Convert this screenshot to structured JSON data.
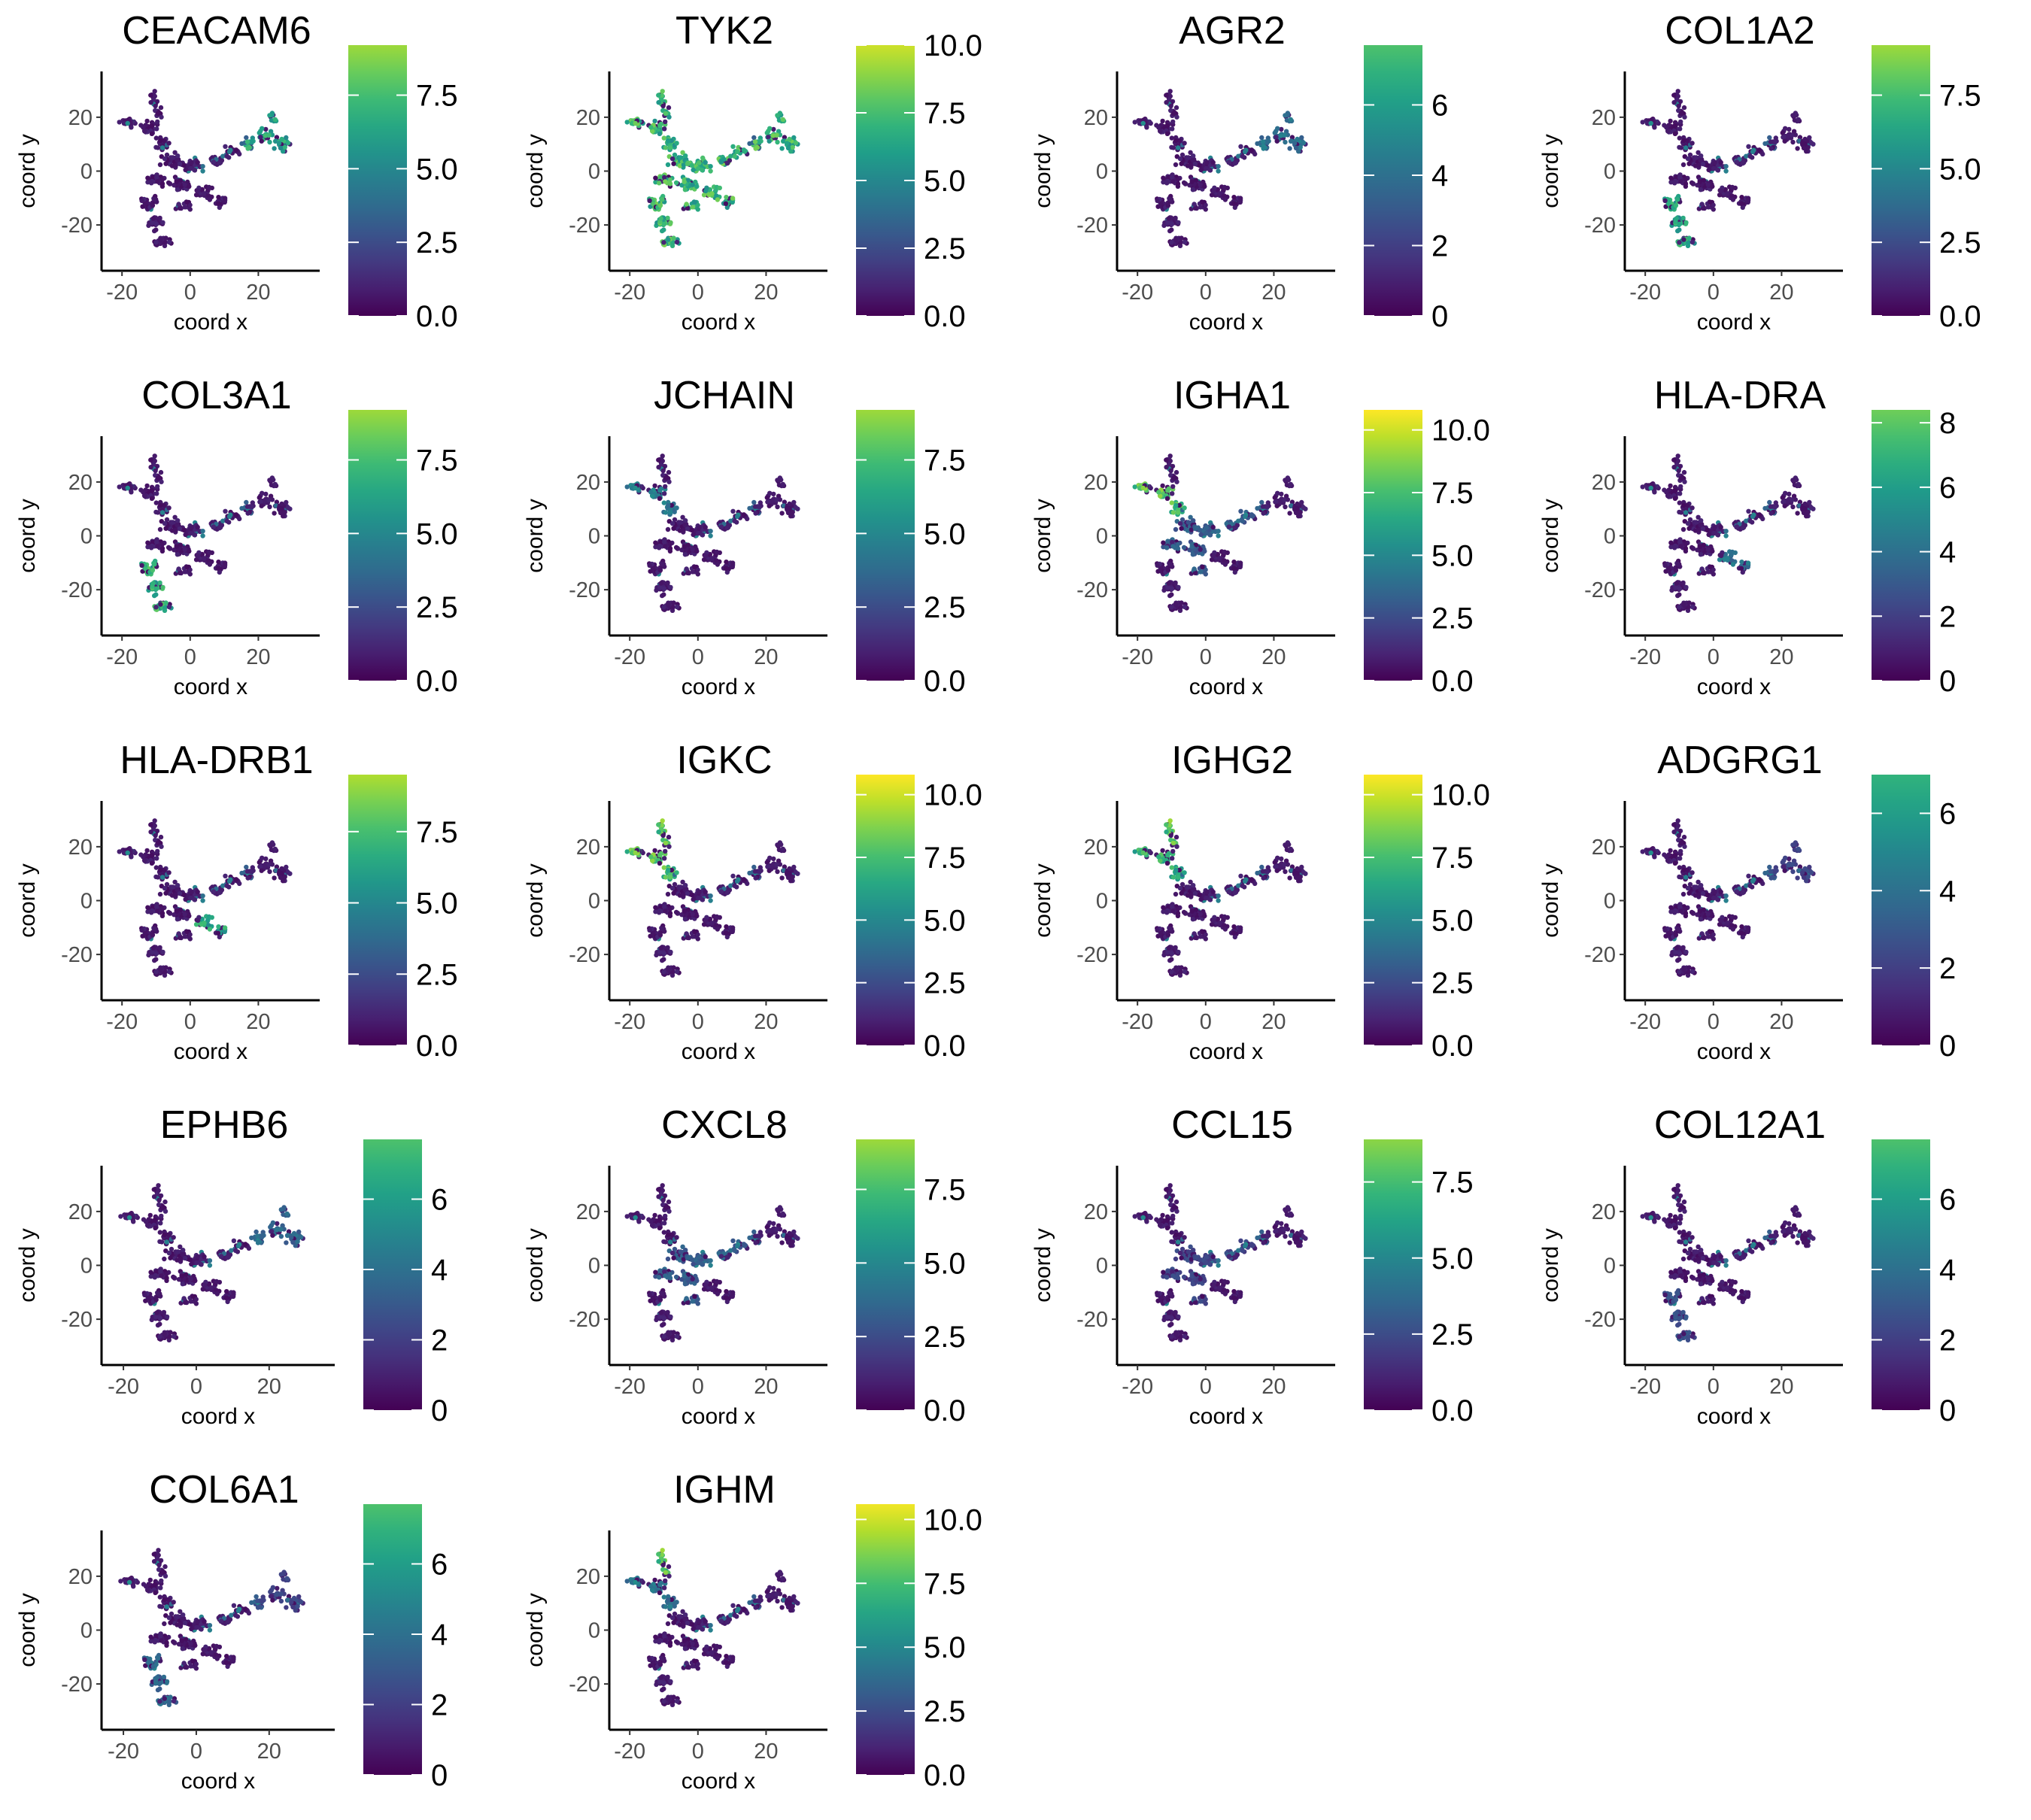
{
  "axis_label_x": "coord x",
  "axis_label_y": "coord y",
  "chart_data": [
    {
      "type": "scatter",
      "title": "CEACAM6",
      "xlabel": "coord x",
      "ylabel": "coord y",
      "x_ticks": [
        "-20",
        "0",
        "20"
      ],
      "y_ticks": [
        "20",
        "0",
        "-20"
      ],
      "colorbar": {
        "min": 0,
        "max": 9.2,
        "ticks": [
          "0.0",
          "2.5",
          "5.0",
          "7.5"
        ],
        "tick_values": [
          0,
          2.5,
          5,
          7.5
        ]
      },
      "high_regions": [
        {
          "region": "right-arm",
          "level": 0.7
        }
      ]
    },
    {
      "type": "scatter",
      "title": "TYK2",
      "xlabel": "coord x",
      "ylabel": "coord y",
      "x_ticks": [
        "-20",
        "0",
        "20"
      ],
      "y_ticks": [
        "20",
        "0",
        "-20"
      ],
      "colorbar": {
        "min": 0,
        "max": 10,
        "ticks": [
          "0.0",
          "2.5",
          "5.0",
          "7.5",
          "10.0"
        ],
        "tick_values": [
          0,
          2.5,
          5,
          7.5,
          10
        ]
      },
      "high_regions": [
        {
          "region": "all",
          "level": 0.8
        }
      ]
    },
    {
      "type": "scatter",
      "title": "AGR2",
      "xlabel": "coord x",
      "ylabel": "coord y",
      "x_ticks": [
        "-20",
        "0",
        "20"
      ],
      "y_ticks": [
        "20",
        "0",
        "-20"
      ],
      "colorbar": {
        "min": 0,
        "max": 7.7,
        "ticks": [
          "0",
          "2",
          "4",
          "6"
        ],
        "tick_values": [
          0,
          2,
          4,
          6
        ]
      },
      "high_regions": [
        {
          "region": "right-arm",
          "level": 0.45
        }
      ]
    },
    {
      "type": "scatter",
      "title": "COL1A2",
      "xlabel": "coord x",
      "ylabel": "coord y",
      "x_ticks": [
        "-20",
        "0",
        "20"
      ],
      "y_ticks": [
        "20",
        "0",
        "-20"
      ],
      "colorbar": {
        "min": 0,
        "max": 9.2,
        "ticks": [
          "0.0",
          "2.5",
          "5.0",
          "7.5"
        ],
        "tick_values": [
          0,
          2.5,
          5,
          7.5
        ]
      },
      "high_regions": [
        {
          "region": "lower-leg",
          "level": 0.7
        }
      ]
    },
    {
      "type": "scatter",
      "title": "COL3A1",
      "xlabel": "coord x",
      "ylabel": "coord y",
      "x_ticks": [
        "-20",
        "0",
        "20"
      ],
      "y_ticks": [
        "20",
        "0",
        "-20"
      ],
      "colorbar": {
        "min": 0,
        "max": 9.2,
        "ticks": [
          "0.0",
          "2.5",
          "5.0",
          "7.5"
        ],
        "tick_values": [
          0,
          2.5,
          5,
          7.5
        ]
      },
      "high_regions": [
        {
          "region": "lower-leg",
          "level": 0.75
        }
      ]
    },
    {
      "type": "scatter",
      "title": "JCHAIN",
      "xlabel": "coord x",
      "ylabel": "coord y",
      "x_ticks": [
        "-20",
        "0",
        "20"
      ],
      "y_ticks": [
        "20",
        "0",
        "-20"
      ],
      "colorbar": {
        "min": 0,
        "max": 9.2,
        "ticks": [
          "0.0",
          "2.5",
          "5.0",
          "7.5"
        ],
        "tick_values": [
          0,
          2.5,
          5,
          7.5
        ]
      },
      "high_regions": [
        {
          "region": "left-arm",
          "level": 0.5
        }
      ]
    },
    {
      "type": "scatter",
      "title": "IGHA1",
      "xlabel": "coord x",
      "ylabel": "coord y",
      "x_ticks": [
        "-20",
        "0",
        "20"
      ],
      "y_ticks": [
        "20",
        "0",
        "-20"
      ],
      "colorbar": {
        "min": 0,
        "max": 10.8,
        "ticks": [
          "0.0",
          "2.5",
          "5.0",
          "7.5",
          "10.0"
        ],
        "tick_values": [
          0,
          2.5,
          5,
          7.5,
          10
        ]
      },
      "high_regions": [
        {
          "region": "left-arm",
          "level": 0.85
        },
        {
          "region": "center",
          "level": 0.35
        }
      ]
    },
    {
      "type": "scatter",
      "title": "HLA-DRA",
      "xlabel": "coord x",
      "ylabel": "coord y",
      "x_ticks": [
        "-20",
        "0",
        "20"
      ],
      "y_ticks": [
        "20",
        "0",
        "-20"
      ],
      "colorbar": {
        "min": 0,
        "max": 8.4,
        "ticks": [
          "0",
          "2",
          "4",
          "6",
          "8"
        ],
        "tick_values": [
          0,
          2,
          4,
          6,
          8
        ]
      },
      "high_regions": [
        {
          "region": "center-lower",
          "level": 0.45
        }
      ]
    },
    {
      "type": "scatter",
      "title": "HLA-DRB1",
      "xlabel": "coord x",
      "ylabel": "coord y",
      "x_ticks": [
        "-20",
        "0",
        "20"
      ],
      "y_ticks": [
        "20",
        "0",
        "-20"
      ],
      "colorbar": {
        "min": 0,
        "max": 9.5,
        "ticks": [
          "0.0",
          "2.5",
          "5.0",
          "7.5"
        ],
        "tick_values": [
          0,
          2.5,
          5,
          7.5
        ]
      },
      "high_regions": [
        {
          "region": "center-lower",
          "level": 0.7
        }
      ]
    },
    {
      "type": "scatter",
      "title": "IGKC",
      "xlabel": "coord x",
      "ylabel": "coord y",
      "x_ticks": [
        "-20",
        "0",
        "20"
      ],
      "y_ticks": [
        "20",
        "0",
        "-20"
      ],
      "colorbar": {
        "min": 0,
        "max": 10.8,
        "ticks": [
          "0.0",
          "2.5",
          "5.0",
          "7.5",
          "10.0"
        ],
        "tick_values": [
          0,
          2.5,
          5,
          7.5,
          10
        ]
      },
      "high_regions": [
        {
          "region": "left-arm",
          "level": 0.85
        },
        {
          "region": "top-spike",
          "level": 0.9
        }
      ]
    },
    {
      "type": "scatter",
      "title": "IGHG2",
      "xlabel": "coord x",
      "ylabel": "coord y",
      "x_ticks": [
        "-20",
        "0",
        "20"
      ],
      "y_ticks": [
        "20",
        "0",
        "-20"
      ],
      "colorbar": {
        "min": 0,
        "max": 10.8,
        "ticks": [
          "0.0",
          "2.5",
          "5.0",
          "7.5",
          "10.0"
        ],
        "tick_values": [
          0,
          2.5,
          5,
          7.5,
          10
        ]
      },
      "high_regions": [
        {
          "region": "left-arm",
          "level": 0.75
        },
        {
          "region": "top-spike",
          "level": 0.9
        }
      ]
    },
    {
      "type": "scatter",
      "title": "ADGRG1",
      "xlabel": "coord x",
      "ylabel": "coord y",
      "x_ticks": [
        "-20",
        "0",
        "20"
      ],
      "y_ticks": [
        "20",
        "0",
        "-20"
      ],
      "colorbar": {
        "min": 0,
        "max": 7,
        "ticks": [
          "0",
          "2",
          "4",
          "6"
        ],
        "tick_values": [
          0,
          2,
          4,
          6
        ]
      },
      "high_regions": [
        {
          "region": "right-arm",
          "level": 0.25
        }
      ]
    },
    {
      "type": "scatter",
      "title": "EPHB6",
      "xlabel": "coord x",
      "ylabel": "coord y",
      "x_ticks": [
        "-20",
        "0",
        "20"
      ],
      "y_ticks": [
        "20",
        "0",
        "-20"
      ],
      "colorbar": {
        "min": 0,
        "max": 7.7,
        "ticks": [
          "0",
          "2",
          "4",
          "6"
        ],
        "tick_values": [
          0,
          2,
          4,
          6
        ]
      },
      "high_regions": [
        {
          "region": "right-arm",
          "level": 0.4
        }
      ]
    },
    {
      "type": "scatter",
      "title": "CXCL8",
      "xlabel": "coord x",
      "ylabel": "coord y",
      "x_ticks": [
        "-20",
        "0",
        "20"
      ],
      "y_ticks": [
        "20",
        "0",
        "-20"
      ],
      "colorbar": {
        "min": 0,
        "max": 9.2,
        "ticks": [
          "0.0",
          "2.5",
          "5.0",
          "7.5"
        ],
        "tick_values": [
          0,
          2.5,
          5,
          7.5
        ]
      },
      "high_regions": [
        {
          "region": "center",
          "level": 0.35
        }
      ]
    },
    {
      "type": "scatter",
      "title": "CCL15",
      "xlabel": "coord x",
      "ylabel": "coord y",
      "x_ticks": [
        "-20",
        "0",
        "20"
      ],
      "y_ticks": [
        "20",
        "0",
        "-20"
      ],
      "colorbar": {
        "min": 0,
        "max": 8.9,
        "ticks": [
          "0.0",
          "2.5",
          "5.0",
          "7.5"
        ],
        "tick_values": [
          0,
          2.5,
          5,
          7.5
        ]
      },
      "high_regions": [
        {
          "region": "center",
          "level": 0.25
        }
      ]
    },
    {
      "type": "scatter",
      "title": "COL12A1",
      "xlabel": "coord x",
      "ylabel": "coord y",
      "x_ticks": [
        "-20",
        "0",
        "20"
      ],
      "y_ticks": [
        "20",
        "0",
        "-20"
      ],
      "colorbar": {
        "min": 0,
        "max": 7.7,
        "ticks": [
          "0",
          "2",
          "4",
          "6"
        ],
        "tick_values": [
          0,
          2,
          4,
          6
        ]
      },
      "high_regions": [
        {
          "region": "lower-leg",
          "level": 0.3
        }
      ]
    },
    {
      "type": "scatter",
      "title": "COL6A1",
      "xlabel": "coord x",
      "ylabel": "coord y",
      "x_ticks": [
        "-20",
        "0",
        "20"
      ],
      "y_ticks": [
        "20",
        "0",
        "-20"
      ],
      "colorbar": {
        "min": 0,
        "max": 7.7,
        "ticks": [
          "0",
          "2",
          "4",
          "6"
        ],
        "tick_values": [
          0,
          2,
          4,
          6
        ]
      },
      "high_regions": [
        {
          "region": "lower-leg",
          "level": 0.4
        },
        {
          "region": "right-arm",
          "level": 0.25
        }
      ]
    },
    {
      "type": "scatter",
      "title": "IGHM",
      "xlabel": "coord x",
      "ylabel": "coord y",
      "x_ticks": [
        "-20",
        "0",
        "20"
      ],
      "y_ticks": [
        "20",
        "0",
        "-20"
      ],
      "colorbar": {
        "min": 0,
        "max": 10.6,
        "ticks": [
          "0.0",
          "2.5",
          "5.0",
          "7.5",
          "10.0"
        ],
        "tick_values": [
          0,
          2.5,
          5,
          7.5,
          10
        ]
      },
      "high_regions": [
        {
          "region": "left-arm",
          "level": 0.45
        },
        {
          "region": "top-spike",
          "level": 0.9
        }
      ]
    }
  ],
  "colors": {
    "viridis": [
      "#440154",
      "#482878",
      "#3e4a89",
      "#31688e",
      "#26828e",
      "#1f9e89",
      "#35b779",
      "#6ece58",
      "#b5de2b",
      "#fde725"
    ],
    "axis": "#000000",
    "tick_text": "#4d4d4d"
  }
}
